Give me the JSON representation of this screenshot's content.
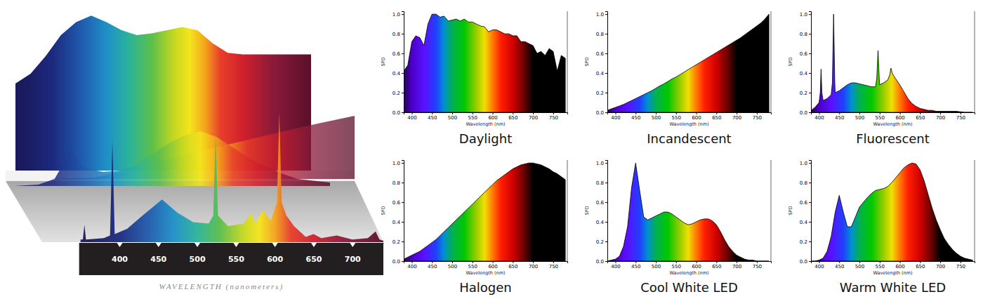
{
  "chart_data": [
    {
      "type": "area",
      "xlabel": "WAVELENGTH (nanometers)",
      "xlim": [
        350,
        740
      ],
      "ylim": [
        0,
        1
      ],
      "xticks": [
        400,
        450,
        500,
        550,
        600,
        650,
        700
      ],
      "tick_labels": "x",
      "series": [
        {
          "x": [
            350,
            370,
            390,
            410,
            430,
            450,
            470,
            490,
            510,
            530,
            550,
            570,
            590,
            610,
            630,
            650,
            670,
            690,
            710,
            730,
            740
          ],
          "values": [
            0.57,
            0.63,
            0.74,
            0.87,
            0.95,
            0.99,
            0.95,
            0.9,
            0.87,
            0.88,
            0.9,
            0.92,
            0.9,
            0.82,
            0.76,
            0.75,
            0.75,
            0.75,
            0.75,
            0.75,
            0.75
          ]
        },
        {
          "x": [
            350,
            400,
            450,
            500,
            550,
            600,
            650,
            700,
            740
          ],
          "values": [
            0,
            0,
            0.02,
            0.2,
            0.38,
            0.55,
            0.72,
            0.88,
            1.0
          ]
        },
        {
          "x": [
            350,
            380,
            400,
            410,
            420,
            430,
            440,
            460,
            480,
            500,
            520,
            540,
            560,
            580,
            600,
            620,
            640,
            660,
            680,
            700,
            740
          ],
          "values": [
            0,
            0.02,
            0.1,
            0.3,
            0.55,
            0.35,
            0.25,
            0.2,
            0.22,
            0.3,
            0.45,
            0.6,
            0.72,
            0.78,
            0.7,
            0.55,
            0.4,
            0.28,
            0.18,
            0.1,
            0.05
          ]
        },
        {
          "x": [
            350,
            353,
            355,
            357,
            380,
            388,
            391,
            394,
            410,
            430,
            455,
            475,
            495,
            515,
            521,
            524,
            527,
            540,
            560,
            570,
            575,
            585,
            595,
            603,
            606,
            609,
            615,
            625,
            640,
            650,
            660,
            680,
            700,
            720,
            730,
            735,
            740
          ],
          "values": [
            0.02,
            0.02,
            0.13,
            0.02,
            0.03,
            0.05,
            0.76,
            0.06,
            0.1,
            0.2,
            0.32,
            0.22,
            0.15,
            0.14,
            0.2,
            0.82,
            0.2,
            0.12,
            0.14,
            0.22,
            0.14,
            0.24,
            0.16,
            0.3,
            0.97,
            0.3,
            0.2,
            0.12,
            0.04,
            0.06,
            0.03,
            0.05,
            0.02,
            0.03,
            0.08,
            0.02,
            0.01
          ]
        }
      ]
    },
    {
      "type": "area",
      "title": "Daylight",
      "xlabel": "Wavelength (nm)",
      "ylabel": "SPD",
      "xlim": [
        380,
        785
      ],
      "ylim": [
        0,
        1.03
      ],
      "xticks": [
        400,
        450,
        500,
        550,
        600,
        650,
        700,
        750
      ],
      "yticks": [
        {
          "value": 0,
          "label": "0.0"
        },
        0.2,
        0.4,
        0.6,
        0.8,
        {
          "value": 1,
          "label": "1.0"
        }
      ],
      "x": [
        380,
        390,
        400,
        410,
        420,
        430,
        440,
        450,
        460,
        470,
        480,
        490,
        500,
        510,
        520,
        530,
        540,
        550,
        560,
        570,
        580,
        590,
        600,
        610,
        620,
        630,
        640,
        650,
        660,
        670,
        680,
        690,
        700,
        710,
        720,
        730,
        740,
        750,
        760,
        770,
        780
      ],
      "values": [
        0.42,
        0.48,
        0.72,
        0.78,
        0.76,
        0.68,
        0.9,
        1.0,
        1.0,
        0.97,
        0.98,
        0.93,
        0.94,
        0.95,
        0.93,
        0.95,
        0.92,
        0.92,
        0.9,
        0.88,
        0.87,
        0.82,
        0.84,
        0.84,
        0.82,
        0.8,
        0.8,
        0.78,
        0.78,
        0.72,
        0.72,
        0.7,
        0.68,
        0.6,
        0.62,
        0.58,
        0.65,
        0.62,
        0.42,
        0.58,
        0.55
      ]
    },
    {
      "type": "area",
      "title": "Incandescent",
      "xlabel": "Wavelength (nm)",
      "ylabel": "SPD",
      "xlim": [
        380,
        785
      ],
      "ylim": [
        0,
        1.03
      ],
      "xticks": [
        400,
        450,
        500,
        550,
        600,
        650,
        700,
        750
      ],
      "yticks": [
        {
          "value": 0,
          "label": "0.0"
        },
        0.2,
        0.4,
        0.6,
        0.8,
        {
          "value": 1,
          "label": "1.0"
        }
      ],
      "x": [
        380,
        390,
        400,
        410,
        420,
        430,
        440,
        450,
        460,
        470,
        480,
        490,
        500,
        510,
        520,
        530,
        540,
        550,
        560,
        570,
        580,
        590,
        600,
        610,
        620,
        630,
        640,
        650,
        660,
        670,
        680,
        690,
        700,
        710,
        720,
        730,
        740,
        750,
        760,
        770,
        780
      ],
      "values": [
        0.02,
        0.035,
        0.05,
        0.065,
        0.08,
        0.1,
        0.12,
        0.14,
        0.16,
        0.18,
        0.2,
        0.22,
        0.245,
        0.27,
        0.29,
        0.315,
        0.34,
        0.36,
        0.385,
        0.41,
        0.435,
        0.46,
        0.485,
        0.51,
        0.535,
        0.56,
        0.585,
        0.61,
        0.635,
        0.66,
        0.685,
        0.71,
        0.735,
        0.76,
        0.79,
        0.82,
        0.85,
        0.88,
        0.91,
        0.95,
        1.0
      ]
    },
    {
      "type": "area",
      "title": "Fluorescent",
      "xlabel": "Wavelength (nm)",
      "ylabel": "SPD",
      "xlim": [
        380,
        785
      ],
      "ylim": [
        0,
        1.03
      ],
      "xticks": [
        400,
        450,
        500,
        550,
        600,
        650,
        700,
        750
      ],
      "yticks": [
        {
          "value": 0,
          "label": "0.0"
        },
        0.2,
        0.4,
        0.6,
        0.8,
        {
          "value": 1,
          "label": "1.0"
        }
      ],
      "x": [
        380,
        390,
        400,
        403,
        405,
        407,
        410,
        420,
        430,
        433,
        436,
        439,
        440,
        450,
        460,
        470,
        480,
        490,
        500,
        510,
        520,
        530,
        540,
        543,
        546,
        549,
        550,
        560,
        570,
        575,
        578,
        581,
        585,
        590,
        600,
        610,
        620,
        630,
        640,
        650,
        660,
        670,
        680,
        690,
        700,
        720,
        740,
        760,
        780
      ],
      "values": [
        0.02,
        0.05,
        0.1,
        0.2,
        0.44,
        0.2,
        0.12,
        0.14,
        0.18,
        0.3,
        1.0,
        0.3,
        0.2,
        0.22,
        0.25,
        0.28,
        0.3,
        0.3,
        0.29,
        0.28,
        0.27,
        0.26,
        0.26,
        0.35,
        0.63,
        0.35,
        0.28,
        0.3,
        0.33,
        0.38,
        0.45,
        0.4,
        0.37,
        0.34,
        0.28,
        0.21,
        0.14,
        0.09,
        0.06,
        0.04,
        0.03,
        0.02,
        0.02,
        0.01,
        0.01,
        0.01,
        0.01,
        0.0,
        0.0
      ]
    },
    {
      "type": "area",
      "title": "Halogen",
      "xlabel": "Wavelength (nm)",
      "ylabel": "SPD",
      "xlim": [
        380,
        785
      ],
      "ylim": [
        0,
        1.03
      ],
      "xticks": [
        400,
        450,
        500,
        550,
        600,
        650,
        700,
        750
      ],
      "yticks": [
        {
          "value": 0,
          "label": "0.0"
        },
        0.2,
        0.4,
        0.6,
        0.8,
        {
          "value": 1,
          "label": "1.0"
        }
      ],
      "x": [
        380,
        390,
        400,
        410,
        420,
        430,
        440,
        450,
        460,
        470,
        480,
        490,
        500,
        510,
        520,
        530,
        540,
        550,
        560,
        570,
        580,
        590,
        600,
        610,
        620,
        630,
        640,
        650,
        660,
        670,
        680,
        690,
        700,
        710,
        720,
        730,
        740,
        750,
        760,
        770,
        780
      ],
      "values": [
        0.02,
        0.04,
        0.06,
        0.08,
        0.1,
        0.13,
        0.16,
        0.19,
        0.22,
        0.26,
        0.3,
        0.34,
        0.38,
        0.42,
        0.46,
        0.5,
        0.54,
        0.58,
        0.62,
        0.66,
        0.7,
        0.74,
        0.78,
        0.82,
        0.85,
        0.88,
        0.91,
        0.94,
        0.96,
        0.98,
        0.99,
        1.0,
        1.0,
        0.99,
        0.98,
        0.96,
        0.94,
        0.91,
        0.89,
        0.86,
        0.83
      ]
    },
    {
      "type": "area",
      "title": "Cool White LED",
      "xlabel": "Wavelength (nm)",
      "ylabel": "SPD",
      "xlim": [
        380,
        785
      ],
      "ylim": [
        0,
        1.03
      ],
      "xticks": [
        400,
        450,
        500,
        550,
        600,
        650,
        700,
        750
      ],
      "yticks": [
        {
          "value": 0,
          "label": "0.0"
        },
        0.2,
        0.4,
        0.6,
        0.8,
        {
          "value": 1,
          "label": "1.0"
        }
      ],
      "x": [
        380,
        390,
        400,
        410,
        420,
        430,
        440,
        450,
        460,
        470,
        480,
        490,
        500,
        510,
        520,
        530,
        540,
        550,
        560,
        570,
        580,
        590,
        600,
        610,
        620,
        630,
        640,
        650,
        660,
        670,
        680,
        690,
        700,
        710,
        720,
        730,
        740,
        750,
        760,
        770,
        780
      ],
      "values": [
        0,
        0.01,
        0.02,
        0.05,
        0.15,
        0.35,
        0.75,
        1.0,
        0.72,
        0.45,
        0.42,
        0.44,
        0.46,
        0.48,
        0.5,
        0.5,
        0.48,
        0.45,
        0.42,
        0.39,
        0.37,
        0.38,
        0.4,
        0.42,
        0.43,
        0.43,
        0.41,
        0.37,
        0.3,
        0.22,
        0.15,
        0.1,
        0.06,
        0.04,
        0.02,
        0.01,
        0.01,
        0,
        0,
        0,
        0
      ]
    },
    {
      "type": "area",
      "title": "Warm White LED",
      "xlabel": "Wavelength (nm)",
      "ylabel": "SPD",
      "xlim": [
        380,
        785
      ],
      "ylim": [
        0,
        1.03
      ],
      "xticks": [
        400,
        450,
        500,
        550,
        600,
        650,
        700,
        750
      ],
      "yticks": [
        {
          "value": 0,
          "label": "0.0"
        },
        0.2,
        0.4,
        0.6,
        0.8,
        {
          "value": 1,
          "label": "1.0"
        }
      ],
      "x": [
        380,
        390,
        400,
        410,
        420,
        430,
        440,
        450,
        460,
        470,
        480,
        490,
        500,
        510,
        520,
        530,
        540,
        550,
        560,
        570,
        580,
        590,
        600,
        610,
        620,
        630,
        640,
        650,
        660,
        670,
        680,
        690,
        700,
        710,
        720,
        730,
        740,
        750,
        760,
        770,
        780
      ],
      "values": [
        0,
        0,
        0.01,
        0.03,
        0.1,
        0.25,
        0.5,
        0.67,
        0.5,
        0.35,
        0.35,
        0.45,
        0.55,
        0.6,
        0.65,
        0.69,
        0.72,
        0.73,
        0.74,
        0.76,
        0.8,
        0.85,
        0.9,
        0.95,
        0.98,
        1.0,
        0.99,
        0.93,
        0.82,
        0.68,
        0.54,
        0.42,
        0.32,
        0.23,
        0.17,
        0.12,
        0.08,
        0.05,
        0.03,
        0.02,
        0.01
      ]
    }
  ]
}
